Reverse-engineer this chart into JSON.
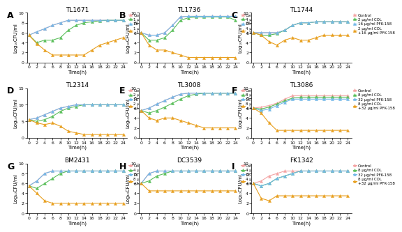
{
  "time_points": [
    0,
    2,
    4,
    6,
    8,
    10,
    12,
    14,
    16,
    18,
    20,
    22,
    24
  ],
  "panels": [
    {
      "label": "A",
      "title": "TL1671",
      "legend": [
        "Control",
        "1 μg/ml COL",
        "16 μg/ml PFK-158",
        "1 μg/ml COL\n+16 μg/ml PFK-158"
      ],
      "ylim": [
        0,
        10
      ],
      "yticks": [
        0,
        2,
        4,
        6,
        8,
        10
      ],
      "series": {
        "control": [
          5.5,
          6.2,
          6.8,
          7.5,
          8.0,
          8.5,
          8.5,
          8.5,
          8.5,
          8.5,
          8.5,
          8.5,
          8.5
        ],
        "col": [
          5.5,
          4.0,
          4.5,
          4.5,
          5.0,
          6.5,
          7.5,
          8.0,
          8.2,
          8.4,
          8.5,
          8.5,
          8.5
        ],
        "pfk": [
          5.5,
          6.2,
          6.8,
          7.5,
          8.0,
          8.5,
          8.5,
          8.5,
          8.5,
          8.5,
          8.5,
          8.5,
          8.5
        ],
        "combo": [
          5.5,
          3.8,
          2.5,
          1.5,
          1.5,
          1.5,
          1.5,
          1.5,
          2.5,
          3.5,
          4.0,
          4.5,
          5.0
        ]
      }
    },
    {
      "label": "B",
      "title": "TL1736",
      "legend": [
        "Control",
        "4 μg/ml COL",
        "16 μg/ml PFK-158",
        "4 μg/ml COL\n+16 μg/ml PFK-158"
      ],
      "ylim": [
        0,
        10
      ],
      "yticks": [
        0,
        2,
        4,
        6,
        8,
        10
      ],
      "series": {
        "control": [
          6.0,
          5.5,
          5.5,
          6.0,
          7.5,
          9.2,
          9.3,
          9.3,
          9.3,
          9.3,
          9.3,
          9.3,
          9.3
        ],
        "col": [
          6.0,
          4.5,
          4.5,
          5.0,
          6.5,
          8.5,
          9.0,
          9.2,
          9.2,
          9.2,
          9.2,
          9.2,
          8.5
        ],
        "pfk": [
          6.0,
          5.5,
          5.5,
          6.0,
          7.5,
          9.2,
          9.3,
          9.3,
          9.3,
          9.3,
          9.3,
          9.3,
          9.3
        ],
        "combo": [
          6.0,
          3.5,
          2.5,
          2.5,
          2.0,
          1.5,
          1.0,
          1.0,
          1.0,
          1.0,
          1.0,
          1.0,
          1.0
        ]
      }
    },
    {
      "label": "C",
      "title": "TL1744",
      "legend": [
        "Control",
        "2 μg/ml COL",
        "16 μg/ml PFK-158",
        "2 μg/ml COL\n+16 μg/ml PFK-158"
      ],
      "ylim": [
        0,
        10
      ],
      "yticks": [
        0,
        2,
        4,
        6,
        8,
        10
      ],
      "series": {
        "control": [
          6.0,
          6.0,
          6.0,
          6.0,
          6.5,
          7.5,
          8.0,
          8.0,
          8.2,
          8.2,
          8.2,
          8.2,
          8.2
        ],
        "col": [
          6.0,
          5.5,
          5.5,
          5.8,
          6.5,
          7.5,
          8.0,
          8.0,
          8.2,
          8.2,
          8.2,
          8.2,
          8.2
        ],
        "pfk": [
          6.0,
          6.0,
          6.0,
          6.0,
          6.5,
          7.5,
          8.0,
          8.0,
          8.2,
          8.2,
          8.2,
          8.2,
          8.2
        ],
        "combo": [
          6.0,
          5.5,
          4.2,
          3.5,
          4.5,
          5.0,
          4.5,
          4.5,
          5.0,
          5.5,
          5.5,
          5.5,
          5.5
        ]
      }
    },
    {
      "label": "D",
      "title": "TL2314",
      "legend": [
        "Control",
        "2 μg/ml COL",
        "16 μg/ml PFK-158",
        "2 μg/ml COL\n+16 μg/ml PFK-158"
      ],
      "ylim": [
        0,
        15
      ],
      "yticks": [
        0,
        5,
        10,
        15
      ],
      "series": {
        "control": [
          5.5,
          6.0,
          7.0,
          8.0,
          9.0,
          9.5,
          10.0,
          10.0,
          10.0,
          10.0,
          10.0,
          10.0,
          10.0
        ],
        "col": [
          5.5,
          5.0,
          5.5,
          6.5,
          8.0,
          9.0,
          9.5,
          10.0,
          10.0,
          10.0,
          10.0,
          10.0,
          10.0
        ],
        "pfk": [
          5.5,
          6.0,
          7.0,
          8.0,
          9.0,
          9.5,
          10.0,
          10.0,
          10.0,
          10.0,
          10.0,
          10.0,
          10.0
        ],
        "combo": [
          5.5,
          4.5,
          4.0,
          4.5,
          3.5,
          2.0,
          1.5,
          1.0,
          1.0,
          1.0,
          1.0,
          1.0,
          1.0
        ]
      }
    },
    {
      "label": "E",
      "title": "TL3008",
      "legend": [
        "Control",
        "8 μg/ml COL",
        "16 μg/ml PFK-158",
        "8 μg/ml COL\n+16 μg/ml PFK-158"
      ],
      "ylim": [
        0,
        10
      ],
      "yticks": [
        0,
        2,
        4,
        6,
        8,
        10
      ],
      "series": {
        "control": [
          5.5,
          6.0,
          6.8,
          7.5,
          8.2,
          8.8,
          9.0,
          9.0,
          9.0,
          9.0,
          9.0,
          9.0,
          9.0
        ],
        "col": [
          5.5,
          5.0,
          5.5,
          6.2,
          7.0,
          7.8,
          8.5,
          8.8,
          9.0,
          9.0,
          9.0,
          9.0,
          9.0
        ],
        "pfk": [
          5.5,
          6.0,
          6.8,
          7.5,
          8.2,
          8.8,
          9.0,
          9.0,
          9.0,
          9.0,
          9.0,
          9.0,
          9.0
        ],
        "combo": [
          5.5,
          4.0,
          3.5,
          4.0,
          4.0,
          3.5,
          3.0,
          2.5,
          2.0,
          2.0,
          2.0,
          2.0,
          2.0
        ]
      }
    },
    {
      "label": "F",
      "title": "TL3086",
      "legend": [
        "Control",
        "8 μg/ml COL",
        "32 μg/ml PFK-158",
        "8 μg/ml COL\n+32 μg/ml PFK-158"
      ],
      "ylim": [
        0,
        10
      ],
      "yticks": [
        0,
        2,
        4,
        6,
        8,
        10
      ],
      "series": {
        "control": [
          6.0,
          6.2,
          6.5,
          7.0,
          7.8,
          8.5,
          8.5,
          8.5,
          8.5,
          8.5,
          8.5,
          8.5,
          8.5
        ],
        "col": [
          6.0,
          5.8,
          6.2,
          6.8,
          7.5,
          8.0,
          8.2,
          8.2,
          8.2,
          8.2,
          8.2,
          8.2,
          8.2
        ],
        "pfk": [
          6.0,
          5.5,
          5.8,
          6.5,
          7.2,
          7.8,
          7.8,
          7.8,
          7.8,
          7.8,
          7.8,
          7.8,
          7.8
        ],
        "combo": [
          6.0,
          5.0,
          3.0,
          1.5,
          1.5,
          1.5,
          1.5,
          1.5,
          1.5,
          1.5,
          1.5,
          1.5,
          1.5
        ]
      }
    },
    {
      "label": "G",
      "title": "BM2431",
      "legend": [
        "Control",
        "4 μg/ml COL",
        "16 μg/ml PFK-158",
        "8 μg/ml COL\n+16 μg/ml PFK-158"
      ],
      "ylim": [
        0,
        10
      ],
      "yticks": [
        0,
        2,
        4,
        6,
        8,
        10
      ],
      "series": {
        "control": [
          5.5,
          6.5,
          8.0,
          8.5,
          8.5,
          8.5,
          8.5,
          8.5,
          8.5,
          8.5,
          8.5,
          8.5,
          8.5
        ],
        "col": [
          5.5,
          5.0,
          6.0,
          7.0,
          8.0,
          8.5,
          8.5,
          8.5,
          8.5,
          8.5,
          8.5,
          8.5,
          8.5
        ],
        "pfk": [
          5.5,
          6.5,
          8.0,
          8.5,
          8.5,
          8.5,
          8.5,
          8.5,
          8.5,
          8.5,
          8.5,
          8.5,
          8.5
        ],
        "combo": [
          5.5,
          4.0,
          2.5,
          2.0,
          2.0,
          2.0,
          2.0,
          2.0,
          2.0,
          2.0,
          2.0,
          2.0,
          2.0
        ]
      }
    },
    {
      "label": "H",
      "title": "DC3539",
      "legend": [
        "Control",
        "4 μg/ml COL",
        "16 μg/ml PFK-158",
        "4 μg/ml COL\n+16 μg/ml PFK-158"
      ],
      "ylim": [
        0,
        10
      ],
      "yticks": [
        0,
        2,
        4,
        6,
        8,
        10
      ],
      "series": {
        "control": [
          6.0,
          8.0,
          8.5,
          8.5,
          8.5,
          8.5,
          8.5,
          8.5,
          8.5,
          8.5,
          8.5,
          8.5,
          8.5
        ],
        "col": [
          6.0,
          6.5,
          7.5,
          8.0,
          8.5,
          8.5,
          8.5,
          8.5,
          8.5,
          8.5,
          8.5,
          8.5,
          8.5
        ],
        "pfk": [
          6.0,
          8.0,
          8.5,
          8.5,
          8.5,
          8.5,
          8.5,
          8.5,
          8.5,
          8.5,
          8.5,
          8.5,
          8.5
        ],
        "combo": [
          6.0,
          4.5,
          4.5,
          4.5,
          4.5,
          4.5,
          4.5,
          4.5,
          4.5,
          4.5,
          4.5,
          4.5,
          4.5
        ]
      }
    },
    {
      "label": "I",
      "title": "FK1342",
      "legend": [
        "Control",
        "8 μg/ml COL",
        "32 μg/ml PFK-158",
        "8 μg/ml COL\n+32 μg/ml PFK-158"
      ],
      "ylim": [
        0,
        10
      ],
      "yticks": [
        0,
        2,
        4,
        6,
        8,
        10
      ],
      "series": {
        "control": [
          6.0,
          6.5,
          7.5,
          8.0,
          8.5,
          8.5,
          8.5,
          8.5,
          8.5,
          8.5,
          8.5,
          8.5,
          8.5
        ],
        "col": [
          6.0,
          5.5,
          6.0,
          7.0,
          7.5,
          8.0,
          8.5,
          8.5,
          8.5,
          8.5,
          8.5,
          8.5,
          8.5
        ],
        "pfk": [
          6.0,
          5.5,
          6.0,
          7.0,
          7.5,
          8.0,
          8.5,
          8.5,
          8.5,
          8.5,
          8.5,
          8.5,
          8.5
        ],
        "combo": [
          6.0,
          3.0,
          2.5,
          3.5,
          3.5,
          3.5,
          3.5,
          3.5,
          3.5,
          3.5,
          3.5,
          3.5,
          3.5
        ]
      }
    }
  ],
  "colors": {
    "control": "#F4A4A4",
    "col": "#5BBF5B",
    "pfk": "#73B8E8",
    "combo": "#E8A020"
  },
  "xlabel": "Time(h)",
  "ylabel": "Log₁₀CFU/ml",
  "marker_control": "^",
  "marker_col": "^",
  "marker_pfk": "^",
  "marker_combo": "^",
  "markersize": 3.0,
  "linewidth": 0.8,
  "fontsize_label": 5.0,
  "fontsize_title": 6.5,
  "fontsize_tick": 4.5,
  "fontsize_legend": 4.0,
  "fontsize_panel_label": 9
}
